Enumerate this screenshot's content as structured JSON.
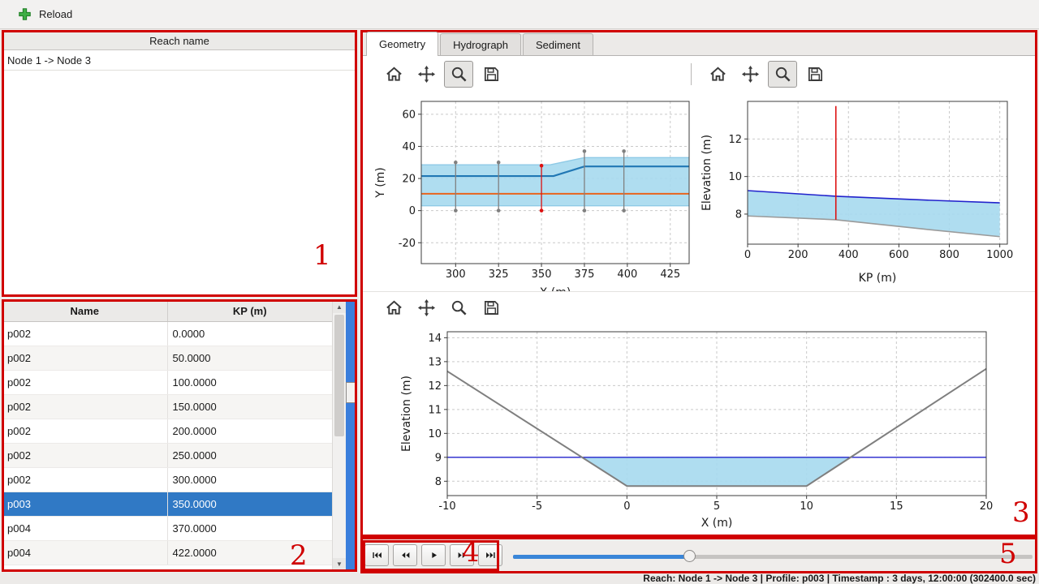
{
  "toolbar": {
    "reload_label": "Reload"
  },
  "reach_panel": {
    "header": "Reach name",
    "items": [
      "Node 1 -> Node 3"
    ]
  },
  "profile_table": {
    "columns": [
      "Name",
      "KP (m)"
    ],
    "selected_index": 7,
    "rows": [
      {
        "name": "p002",
        "kp": "0.0000"
      },
      {
        "name": "p002",
        "kp": "50.0000"
      },
      {
        "name": "p002",
        "kp": "100.0000"
      },
      {
        "name": "p002",
        "kp": "150.0000"
      },
      {
        "name": "p002",
        "kp": "200.0000"
      },
      {
        "name": "p002",
        "kp": "250.0000"
      },
      {
        "name": "p002",
        "kp": "300.0000"
      },
      {
        "name": "p003",
        "kp": "350.0000"
      },
      {
        "name": "p004",
        "kp": "370.0000"
      },
      {
        "name": "p004",
        "kp": "422.0000"
      }
    ]
  },
  "tabs": [
    {
      "label": "Geometry",
      "active": true
    },
    {
      "label": "Hydrograph",
      "active": false
    },
    {
      "label": "Sediment",
      "active": false
    }
  ],
  "plot_toolbar": {
    "buttons": [
      "home",
      "pan",
      "zoom",
      "save"
    ],
    "zoom_active_top": true,
    "zoom_active_bottom": false
  },
  "player": {
    "buttons": [
      "skip-to-start",
      "rewind",
      "play",
      "fast-forward",
      "skip-to-end"
    ]
  },
  "time_slider": {
    "value_pct": 34
  },
  "status_bar": {
    "text": "Reach: Node 1 -> Node 3 | Profile: p003 | Timestamp : 3 days, 12:00:00 (302400.0 sec)"
  },
  "annotations": {
    "color": "#d00000",
    "labels": [
      "1",
      "2",
      "3",
      "4",
      "5"
    ]
  },
  "colors": {
    "selection_blue": "#3079c5",
    "slider_fill_blue": "#3a86d8",
    "scrollbar_blue": "#3a7edc",
    "annotation_red": "#d00000",
    "water_fill": "#a6d9ee"
  },
  "chart_data": [
    {
      "type": "line",
      "xlabel": "X (m)",
      "ylabel": "Y (m)",
      "xlim": [
        280,
        436
      ],
      "ylim": [
        -33,
        68
      ],
      "xticks": [
        300,
        325,
        350,
        375,
        400,
        425
      ],
      "yticks": [
        -20,
        0,
        20,
        40,
        60
      ],
      "series": [
        {
          "type": "area",
          "color": "#a6d9ee",
          "opacity": 0.9,
          "stroke": "#8ecae6",
          "upper": [
            [
              280,
              28.5
            ],
            [
              355,
              28.5
            ],
            [
              375,
              33
            ],
            [
              436,
              33
            ]
          ],
          "lower": [
            [
              280,
              3
            ],
            [
              436,
              3
            ]
          ]
        },
        {
          "type": "line",
          "color": "#2077b4",
          "width": 2.2,
          "points": [
            [
              280,
              21.5
            ],
            [
              357,
              21.5
            ],
            [
              375,
              27.5
            ],
            [
              436,
              27.5
            ]
          ]
        },
        {
          "type": "line",
          "color": "#e8641e",
          "width": 2,
          "points": [
            [
              280,
              10.5
            ],
            [
              436,
              10.5
            ]
          ]
        },
        {
          "type": "errorbar",
          "color": "#808080",
          "x": 300,
          "y0": 0,
          "y1": 30
        },
        {
          "type": "errorbar",
          "color": "#808080",
          "x": 325,
          "y0": 0,
          "y1": 30
        },
        {
          "type": "errorbar",
          "color": "#dd1111",
          "x": 350,
          "y0": 0,
          "y1": 28
        },
        {
          "type": "errorbar",
          "color": "#808080",
          "x": 375,
          "y0": 0,
          "y1": 37
        },
        {
          "type": "errorbar",
          "color": "#808080",
          "x": 398,
          "y0": 0,
          "y1": 37
        }
      ]
    },
    {
      "type": "line",
      "xlabel": "KP (m)",
      "ylabel": "Elevation (m)",
      "xlim": [
        0,
        1030
      ],
      "ylim": [
        6.4,
        14.0
      ],
      "xticks": [
        0,
        200,
        400,
        600,
        800,
        1000
      ],
      "yticks": [
        8,
        10,
        12
      ],
      "series": [
        {
          "type": "area",
          "color": "#a6d9ee",
          "opacity": 0.9,
          "upper": [
            [
              0,
              9.25
            ],
            [
              350,
              8.95
            ],
            [
              700,
              8.75
            ],
            [
              1000,
              8.6
            ]
          ],
          "lower": [
            [
              0,
              7.9
            ],
            [
              350,
              7.7
            ],
            [
              700,
              7.2
            ],
            [
              1000,
              6.8
            ]
          ]
        },
        {
          "type": "line",
          "color": "#2222cc",
          "width": 1.6,
          "points": [
            [
              0,
              9.25
            ],
            [
              350,
              8.95
            ],
            [
              700,
              8.75
            ],
            [
              1000,
              8.6
            ]
          ]
        },
        {
          "type": "line",
          "color": "#9a9a9a",
          "width": 1.6,
          "points": [
            [
              0,
              7.9
            ],
            [
              350,
              7.7
            ],
            [
              700,
              7.2
            ],
            [
              1000,
              6.8
            ]
          ]
        },
        {
          "type": "vline",
          "color": "#dd1111",
          "x": 350,
          "y0": 7.7,
          "y1": 13.75,
          "width": 1.6
        }
      ]
    },
    {
      "type": "line",
      "xlabel": "X (m)",
      "ylabel": "Elevation (m)",
      "xlim": [
        -10,
        20
      ],
      "ylim": [
        7.4,
        14.25
      ],
      "xticks": [
        -10,
        -5,
        0,
        5,
        10,
        15,
        20
      ],
      "yticks": [
        8,
        9,
        10,
        11,
        12,
        13,
        14
      ],
      "series": [
        {
          "type": "area",
          "color": "#a6d9ee",
          "opacity": 0.9,
          "upper": [
            [
              -2.5,
              9.0
            ],
            [
              12.45,
              9.0
            ]
          ],
          "lower": [
            [
              -2.5,
              9.0
            ],
            [
              0,
              7.8
            ],
            [
              10,
              7.8
            ],
            [
              12.45,
              9.0
            ]
          ]
        },
        {
          "type": "line",
          "color": "#2222cc",
          "width": 1.4,
          "points": [
            [
              -10,
              9.0
            ],
            [
              20,
              9.0
            ]
          ]
        },
        {
          "type": "line",
          "color": "#7f7f7f",
          "width": 2,
          "points": [
            [
              -10,
              12.6
            ],
            [
              0,
              7.8
            ],
            [
              10,
              7.8
            ],
            [
              20,
              12.7
            ]
          ]
        }
      ]
    }
  ]
}
